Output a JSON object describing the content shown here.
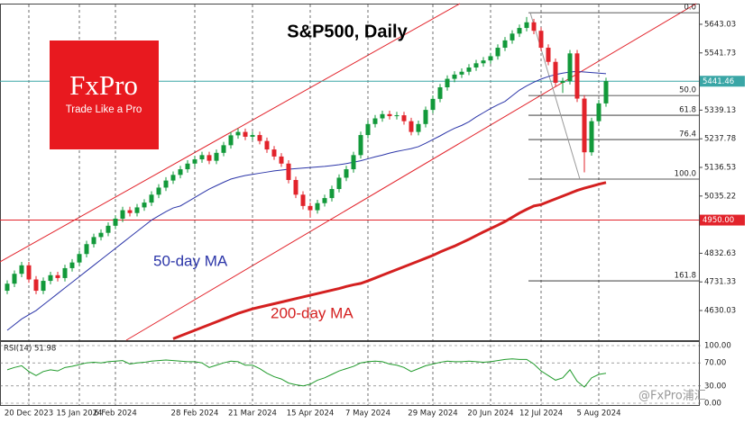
{
  "chart_data": {
    "type": "candlestick",
    "title": "S&P500, Daily",
    "logo": {
      "brand": "FxPro",
      "tagline": "Trade Like a Pro"
    },
    "watermark": "@FxPro浦汇",
    "up_color": "#12993a",
    "down_color": "#e2232b",
    "ylim": [
      4525,
      5713
    ],
    "yticks": [
      5643.03,
      5541.73,
      5339.13,
      5237.78,
      5136.53,
      5035.22,
      4832.63,
      4731.33,
      4630.03
    ],
    "xticks": [
      {
        "value": 3,
        "label": "20 Dec 2023"
      },
      {
        "value": 10,
        "label": "15 Jan 2024"
      },
      {
        "value": 15,
        "label": "6 Feb 2024"
      },
      {
        "value": 26,
        "label": "28 Feb 2024"
      },
      {
        "value": 34,
        "label": "21 Mar 2024"
      },
      {
        "value": 42,
        "label": "15 Apr 2024"
      },
      {
        "value": 50,
        "label": "7 May 2024"
      },
      {
        "value": 59,
        "label": "29 May 2024"
      },
      {
        "value": 67,
        "label": "20 Jun 2024"
      },
      {
        "value": 74,
        "label": "12 Jul 2024"
      },
      {
        "value": 82,
        "label": "5 Aug 2024"
      }
    ],
    "price_lines": [
      {
        "value": 5441.46,
        "label": "5441.46",
        "color": "#3aa6a6"
      },
      {
        "value": 4950,
        "label": "4950.00",
        "color": "#e2232b"
      }
    ],
    "fibonacci": [
      {
        "label": "0.0",
        "value": 5684
      },
      {
        "label": "50.0",
        "value": 5391
      },
      {
        "label": "61.8",
        "value": 5321
      },
      {
        "label": "76.4",
        "value": 5235
      },
      {
        "label": "100.0",
        "value": 5095
      },
      {
        "label": "161.8",
        "value": 4735
      }
    ],
    "candles": [
      [
        4700,
        4737,
        4688,
        4725
      ],
      [
        4725,
        4772,
        4713,
        4760
      ],
      [
        4760,
        4802,
        4748,
        4790
      ],
      [
        4790,
        4802,
        4728,
        4740
      ],
      [
        4740,
        4752,
        4688,
        4700
      ],
      [
        4700,
        4747,
        4688,
        4735
      ],
      [
        4735,
        4767,
        4723,
        4755
      ],
      [
        4755,
        4767,
        4733,
        4745
      ],
      [
        4745,
        4792,
        4733,
        4780
      ],
      [
        4780,
        4812,
        4768,
        4800
      ],
      [
        4800,
        4842,
        4788,
        4830
      ],
      [
        4830,
        4877,
        4818,
        4865
      ],
      [
        4865,
        4902,
        4853,
        4890
      ],
      [
        4890,
        4917,
        4878,
        4905
      ],
      [
        4905,
        4942,
        4893,
        4930
      ],
      [
        4930,
        4967,
        4918,
        4955
      ],
      [
        4955,
        4997,
        4943,
        4985
      ],
      [
        4985,
        4997,
        4963,
        4975
      ],
      [
        4975,
        5007,
        4963,
        4995
      ],
      [
        4995,
        5024,
        4983,
        5012
      ],
      [
        5012,
        5052,
        5000,
        5040
      ],
      [
        5040,
        5077,
        5028,
        5065
      ],
      [
        5065,
        5102,
        5053,
        5090
      ],
      [
        5090,
        5122,
        5078,
        5110
      ],
      [
        5110,
        5142,
        5098,
        5130
      ],
      [
        5130,
        5162,
        5118,
        5150
      ],
      [
        5150,
        5177,
        5138,
        5165
      ],
      [
        5165,
        5192,
        5153,
        5180
      ],
      [
        5180,
        5192,
        5148,
        5160
      ],
      [
        5160,
        5200,
        5148,
        5188
      ],
      [
        5188,
        5227,
        5176,
        5215
      ],
      [
        5215,
        5262,
        5203,
        5250
      ],
      [
        5250,
        5274,
        5238,
        5262
      ],
      [
        5262,
        5274,
        5233,
        5245
      ],
      [
        5245,
        5263,
        5233,
        5251
      ],
      [
        5251,
        5263,
        5218,
        5230
      ],
      [
        5230,
        5242,
        5188,
        5200
      ],
      [
        5200,
        5212,
        5163,
        5175
      ],
      [
        5175,
        5187,
        5138,
        5150
      ],
      [
        5150,
        5162,
        5080,
        5092
      ],
      [
        5092,
        5104,
        5028,
        5040
      ],
      [
        5040,
        5052,
        4988,
        5000
      ],
      [
        5000,
        5012,
        4960,
        4985
      ],
      [
        4985,
        5022,
        4973,
        5010
      ],
      [
        5010,
        5040,
        4998,
        5028
      ],
      [
        5028,
        5072,
        5016,
        5060
      ],
      [
        5060,
        5112,
        5048,
        5100
      ],
      [
        5100,
        5142,
        5088,
        5130
      ],
      [
        5130,
        5192,
        5118,
        5180
      ],
      [
        5180,
        5263,
        5168,
        5251
      ],
      [
        5251,
        5302,
        5239,
        5290
      ],
      [
        5290,
        5322,
        5278,
        5310
      ],
      [
        5310,
        5337,
        5298,
        5325
      ],
      [
        5325,
        5337,
        5306,
        5318
      ],
      [
        5318,
        5333,
        5306,
        5321
      ],
      [
        5321,
        5333,
        5288,
        5300
      ],
      [
        5300,
        5312,
        5250,
        5262
      ],
      [
        5262,
        5302,
        5250,
        5290
      ],
      [
        5290,
        5352,
        5278,
        5340
      ],
      [
        5340,
        5391,
        5328,
        5379
      ],
      [
        5379,
        5432,
        5367,
        5420
      ],
      [
        5420,
        5462,
        5408,
        5450
      ],
      [
        5450,
        5477,
        5438,
        5465
      ],
      [
        5465,
        5487,
        5453,
        5475
      ],
      [
        5475,
        5502,
        5463,
        5490
      ],
      [
        5490,
        5517,
        5478,
        5505
      ],
      [
        5505,
        5527,
        5493,
        5515
      ],
      [
        5515,
        5542,
        5503,
        5530
      ],
      [
        5530,
        5572,
        5518,
        5560
      ],
      [
        5560,
        5598,
        5548,
        5586
      ],
      [
        5586,
        5622,
        5574,
        5610
      ],
      [
        5610,
        5642,
        5598,
        5630
      ],
      [
        5630,
        5669,
        5618,
        5650
      ],
      [
        5650,
        5662,
        5608,
        5620
      ],
      [
        5620,
        5632,
        5548,
        5560
      ],
      [
        5560,
        5572,
        5498,
        5510
      ],
      [
        5510,
        5522,
        5424,
        5436
      ],
      [
        5436,
        5454,
        5400,
        5442
      ],
      [
        5442,
        5552,
        5430,
        5540
      ],
      [
        5540,
        5552,
        5368,
        5380
      ],
      [
        5380,
        5392,
        5119,
        5190
      ],
      [
        5190,
        5312,
        5178,
        5300
      ],
      [
        5300,
        5375,
        5288,
        5363
      ],
      [
        5363,
        5454,
        5351,
        5442
      ]
    ],
    "series": [
      {
        "name": "50-day MA",
        "color": "#2b35a8",
        "width": 1,
        "values": [
          4560,
          4580,
          4600,
          4615,
          4630,
          4650,
          4670,
          4690,
          4710,
          4730,
          4750,
          4770,
          4790,
          4810,
          4830,
          4850,
          4870,
          4890,
          4910,
          4930,
          4950,
          4965,
          4980,
          4993,
          5000,
          5015,
          5030,
          5045,
          5060,
          5072,
          5084,
          5095,
          5102,
          5108,
          5112,
          5116,
          5120,
          5124,
          5127,
          5130,
          5132,
          5134,
          5136,
          5138,
          5140,
          5143,
          5146,
          5150,
          5155,
          5160,
          5167,
          5174,
          5180,
          5187,
          5193,
          5198,
          5203,
          5210,
          5222,
          5235,
          5248,
          5262,
          5275,
          5285,
          5298,
          5315,
          5330,
          5345,
          5358,
          5370,
          5390,
          5410,
          5425,
          5438,
          5449,
          5458,
          5465,
          5470,
          5474,
          5476,
          5474,
          5472,
          5470,
          5468
        ]
      },
      {
        "name": "200-day MA",
        "color": "#d42020",
        "width": 3,
        "values": [
          null,
          null,
          null,
          null,
          null,
          null,
          null,
          null,
          null,
          null,
          null,
          null,
          null,
          null,
          null,
          null,
          null,
          null,
          null,
          null,
          null,
          null,
          null,
          4530,
          4540,
          4550,
          4560,
          4570,
          4580,
          4590,
          4600,
          4610,
          4620,
          4628,
          4636,
          4642,
          4648,
          4654,
          4660,
          4666,
          4672,
          4678,
          4684,
          4690,
          4696,
          4702,
          4708,
          4715,
          4721,
          4726,
          4735,
          4745,
          4755,
          4765,
          4775,
          4785,
          4795,
          4805,
          4815,
          4825,
          4837,
          4848,
          4858,
          4870,
          4882,
          4895,
          4908,
          4920,
          4932,
          4945,
          4960,
          4975,
          4988,
          5000,
          5005,
          5015,
          5025,
          5035,
          5045,
          5055,
          5063,
          5070,
          5077,
          5083
        ]
      }
    ],
    "rsi": {
      "label": "RSI(14) 51.98",
      "color": "#1f9a2a",
      "ylim": [
        0,
        100
      ],
      "yticks": [
        {
          "value": 100,
          "label": "100.00"
        },
        {
          "value": 70,
          "label": "70.00"
        },
        {
          "value": 30,
          "label": "30.00"
        },
        {
          "value": 0,
          "label": "0.00"
        }
      ],
      "values": [
        58,
        62,
        65,
        55,
        48,
        55,
        58,
        56,
        62,
        64,
        67,
        70,
        71,
        70,
        72,
        73,
        74,
        68,
        70,
        71,
        73,
        74,
        75,
        74,
        73,
        72,
        72,
        70,
        62,
        66,
        70,
        73,
        72,
        66,
        66,
        60,
        52,
        46,
        42,
        35,
        32,
        30,
        33,
        40,
        44,
        50,
        56,
        60,
        64,
        70,
        72,
        73,
        72,
        68,
        66,
        62,
        55,
        60,
        65,
        68,
        71,
        73,
        72,
        72,
        73,
        72,
        71,
        72,
        74,
        76,
        77,
        76,
        76,
        68,
        56,
        48,
        40,
        44,
        58,
        38,
        28,
        44,
        50,
        51.98
      ]
    }
  }
}
